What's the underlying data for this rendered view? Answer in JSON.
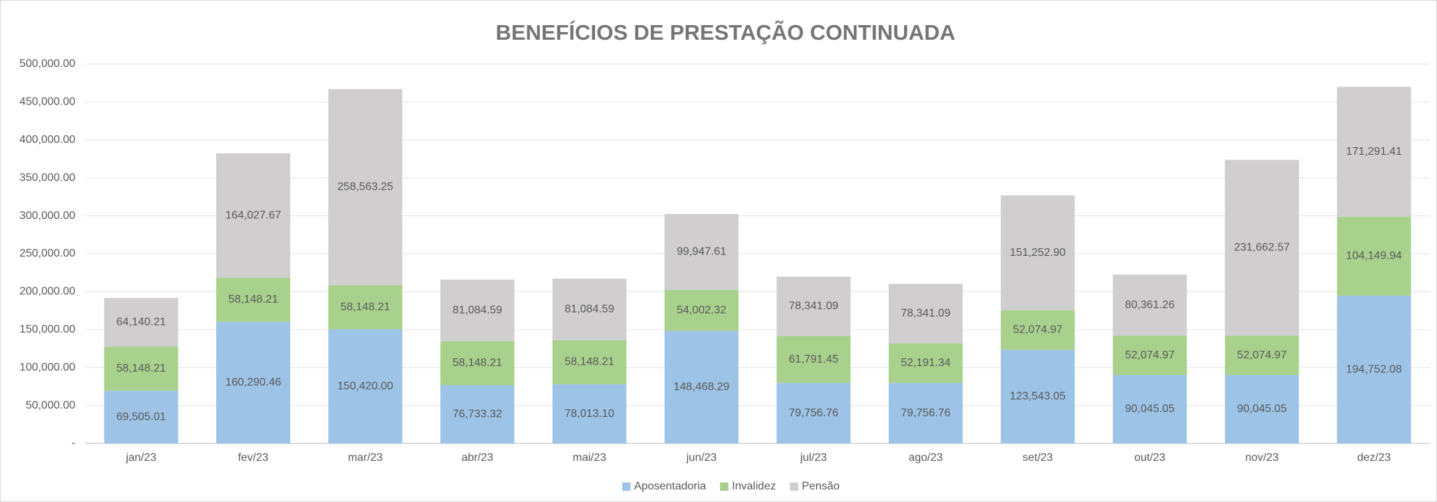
{
  "chart_data": {
    "type": "stacked_bar",
    "title": "BENEFÍCIOS DE PRESTAÇÃO CONTINUADA",
    "categories": [
      "jan/23",
      "fev/23",
      "mar/23",
      "abr/23",
      "mai/23",
      "jun/23",
      "jul/23",
      "ago/23",
      "set/23",
      "out/23",
      "nov/23",
      "dez/23"
    ],
    "series": [
      {
        "name": "Aposentadoria",
        "color": "#9dc3e6",
        "values": [
          69505.01,
          160290.46,
          150420.0,
          76733.32,
          78013.1,
          148468.29,
          79756.76,
          79756.76,
          123543.05,
          90045.05,
          90045.05,
          194752.08
        ],
        "value_labels": [
          "69,505.01",
          "160,290.46",
          "150,420.00",
          "76,733.32",
          "78,013.10",
          "148,468.29",
          "79,756.76",
          "79,756.76",
          "123,543.05",
          "90,045.05",
          "90,045.05",
          "194,752.08"
        ]
      },
      {
        "name": "Invalidez",
        "color": "#a9d18e",
        "values": [
          58148.21,
          58148.21,
          58148.21,
          58148.21,
          58148.21,
          54002.32,
          61791.45,
          52191.34,
          52074.97,
          52074.97,
          52074.97,
          104149.94
        ],
        "value_labels": [
          "58,148.21",
          "58,148.21",
          "58,148.21",
          "58,148.21",
          "58,148.21",
          "54,002.32",
          "61,791.45",
          "52,191.34",
          "52,074.97",
          "52,074.97",
          "52,074.97",
          "104,149.94"
        ]
      },
      {
        "name": "Pensão",
        "color": "#d0cece",
        "values": [
          64140.21,
          164027.67,
          258563.25,
          81084.59,
          81084.59,
          99947.61,
          78341.09,
          78341.09,
          151252.9,
          80361.26,
          231662.57,
          171291.41
        ],
        "value_labels": [
          "64,140.21",
          "164,027.67",
          "258,563.25",
          "81,084.59",
          "81,084.59",
          "99,947.61",
          "78,341.09",
          "78,341.09",
          "151,252.90",
          "80,361.26",
          "231,662.57",
          "171,291.41"
        ]
      }
    ],
    "ylim": [
      0,
      500000
    ],
    "yticks": [
      {
        "value": 0,
        "label": "-"
      },
      {
        "value": 50000,
        "label": "50,000.00"
      },
      {
        "value": 100000,
        "label": "100,000.00"
      },
      {
        "value": 150000,
        "label": "150,000.00"
      },
      {
        "value": 200000,
        "label": "200,000.00"
      },
      {
        "value": 250000,
        "label": "250,000.00"
      },
      {
        "value": 300000,
        "label": "300,000.00"
      },
      {
        "value": 350000,
        "label": "350,000.00"
      },
      {
        "value": 400000,
        "label": "400,000.00"
      },
      {
        "value": 450000,
        "label": "450,000.00"
      },
      {
        "value": 500000,
        "label": "500,000.00"
      }
    ],
    "grid": true,
    "legend": "bottom"
  }
}
